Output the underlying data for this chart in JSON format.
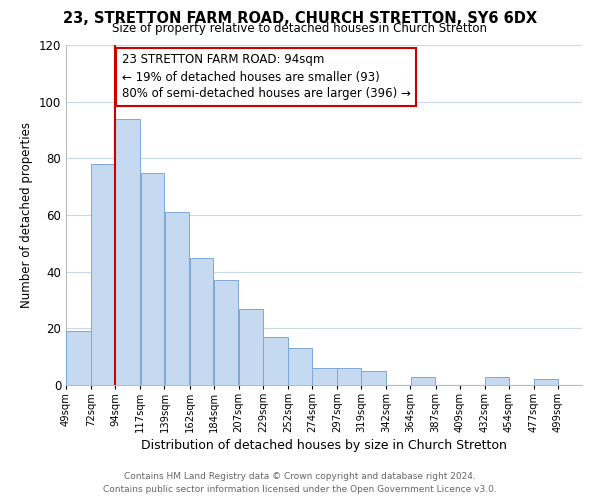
{
  "title": "23, STRETTON FARM ROAD, CHURCH STRETTON, SY6 6DX",
  "subtitle": "Size of property relative to detached houses in Church Stretton",
  "xlabel": "Distribution of detached houses by size in Church Stretton",
  "ylabel": "Number of detached properties",
  "bar_left_edges": [
    49,
    72,
    94,
    117,
    139,
    162,
    184,
    207,
    229,
    252,
    274,
    297,
    319,
    342,
    364,
    387,
    409,
    432,
    454,
    477
  ],
  "bar_widths": [
    23,
    22,
    23,
    22,
    23,
    22,
    23,
    22,
    23,
    22,
    23,
    22,
    23,
    22,
    23,
    22,
    23,
    22,
    23,
    22
  ],
  "bar_heights": [
    19,
    78,
    94,
    75,
    61,
    45,
    37,
    27,
    17,
    13,
    6,
    6,
    5,
    0,
    3,
    0,
    0,
    3,
    0,
    2
  ],
  "bar_color": "#c5d9f1",
  "bar_edge_color": "#7da7d9",
  "property_line_x": 94,
  "property_line_color": "#cc0000",
  "ylim": [
    0,
    120
  ],
  "yticks": [
    0,
    20,
    40,
    60,
    80,
    100,
    120
  ],
  "tick_labels": [
    "49sqm",
    "72sqm",
    "94sqm",
    "117sqm",
    "139sqm",
    "162sqm",
    "184sqm",
    "207sqm",
    "229sqm",
    "252sqm",
    "274sqm",
    "297sqm",
    "319sqm",
    "342sqm",
    "364sqm",
    "387sqm",
    "409sqm",
    "432sqm",
    "454sqm",
    "477sqm",
    "499sqm"
  ],
  "annotation_title": "23 STRETTON FARM ROAD: 94sqm",
  "annotation_line1": "← 19% of detached houses are smaller (93)",
  "annotation_line2": "80% of semi-detached houses are larger (396) →",
  "annotation_box_color": "#ffffff",
  "annotation_box_edge_color": "#cc0000",
  "footer_line1": "Contains HM Land Registry data © Crown copyright and database right 2024.",
  "footer_line2": "Contains public sector information licensed under the Open Government Licence v3.0.",
  "background_color": "#ffffff",
  "grid_color": "#c8d8ea",
  "title_fontsize": 10.5,
  "subtitle_fontsize": 8.5,
  "ylabel_fontsize": 8.5,
  "xlabel_fontsize": 9.0,
  "tick_fontsize": 7.2,
  "ytick_fontsize": 8.5,
  "footer_fontsize": 6.5,
  "ann_fontsize": 8.5
}
